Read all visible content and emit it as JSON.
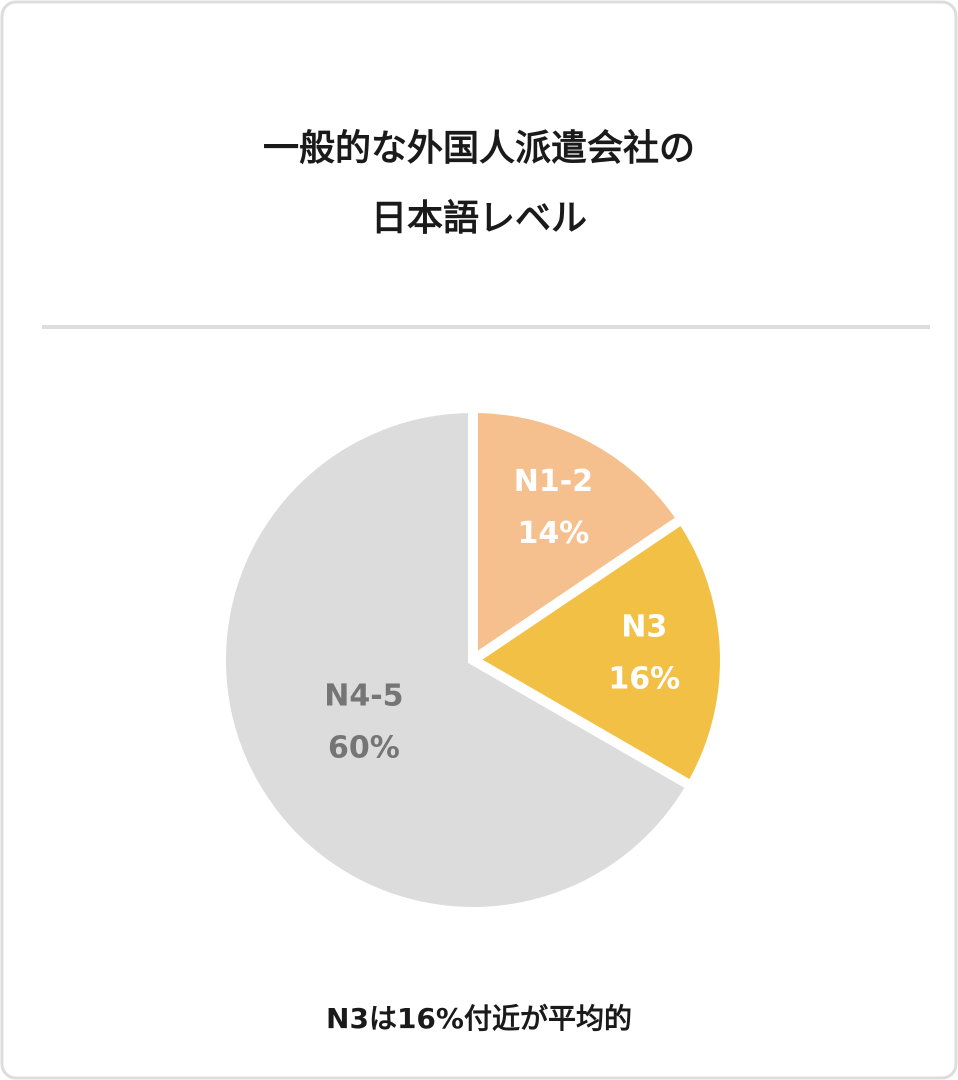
{
  "chart_data": {
    "type": "pie",
    "title": [
      "一般的な外国人派遣会社の",
      "日本語レベル"
    ],
    "categories": [
      "N1-2",
      "N3",
      "N4-5"
    ],
    "values": [
      14,
      16,
      60
    ],
    "value_labels": [
      "14%",
      "16%",
      "60%"
    ],
    "colors": [
      "#f5c08e",
      "#f3c046",
      "#dcdcdc"
    ],
    "label_colors": [
      "#ffffff",
      "#ffffff",
      "#757575"
    ],
    "annotation": "N3は16%付近が平均的"
  }
}
